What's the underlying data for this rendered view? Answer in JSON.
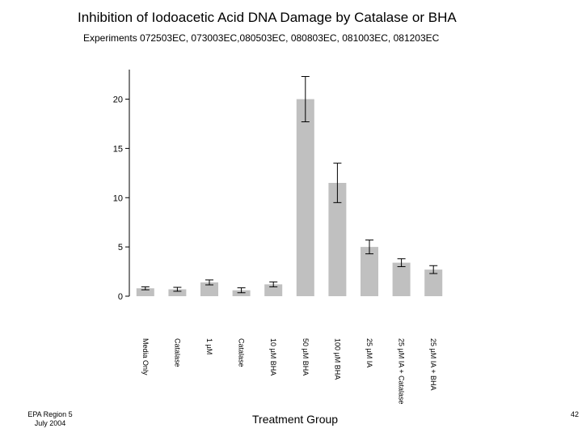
{
  "title": "Inhibition of Iodoacetic Acid DNA Damage by Catalase or BHA",
  "subtitle": "Experiments 072503EC, 073003EC,080503EC, 080803EC, 081003EC, 081203EC",
  "footer": {
    "org": "EPA Region 5",
    "date": "July 2004",
    "page": "42"
  },
  "chart_data": {
    "type": "bar",
    "title": "Inhibition of Iodoacetic Acid DNA Damage by Catalase or BHA",
    "xlabel": "Treatment Group",
    "ylabel": "",
    "ylim": [
      0,
      23
    ],
    "yticks": [
      0,
      5,
      10,
      15,
      20
    ],
    "grid": false,
    "bar_color": "#c0c0c0",
    "categories": [
      "Media Only",
      "Catalase",
      "1 µM",
      "Catalase",
      "10 µM BHA",
      "50 µM BHA",
      "100 µM BHA",
      "25 µM IA",
      "25 µM IA + Catalase",
      "25 µM IA + BHA"
    ],
    "values": [
      0.8,
      0.7,
      1.4,
      0.6,
      1.2,
      20.0,
      11.5,
      5.0,
      3.4,
      2.7
    ],
    "errors": [
      0.15,
      0.2,
      0.25,
      0.25,
      0.25,
      2.3,
      2.0,
      0.7,
      0.4,
      0.4
    ]
  }
}
